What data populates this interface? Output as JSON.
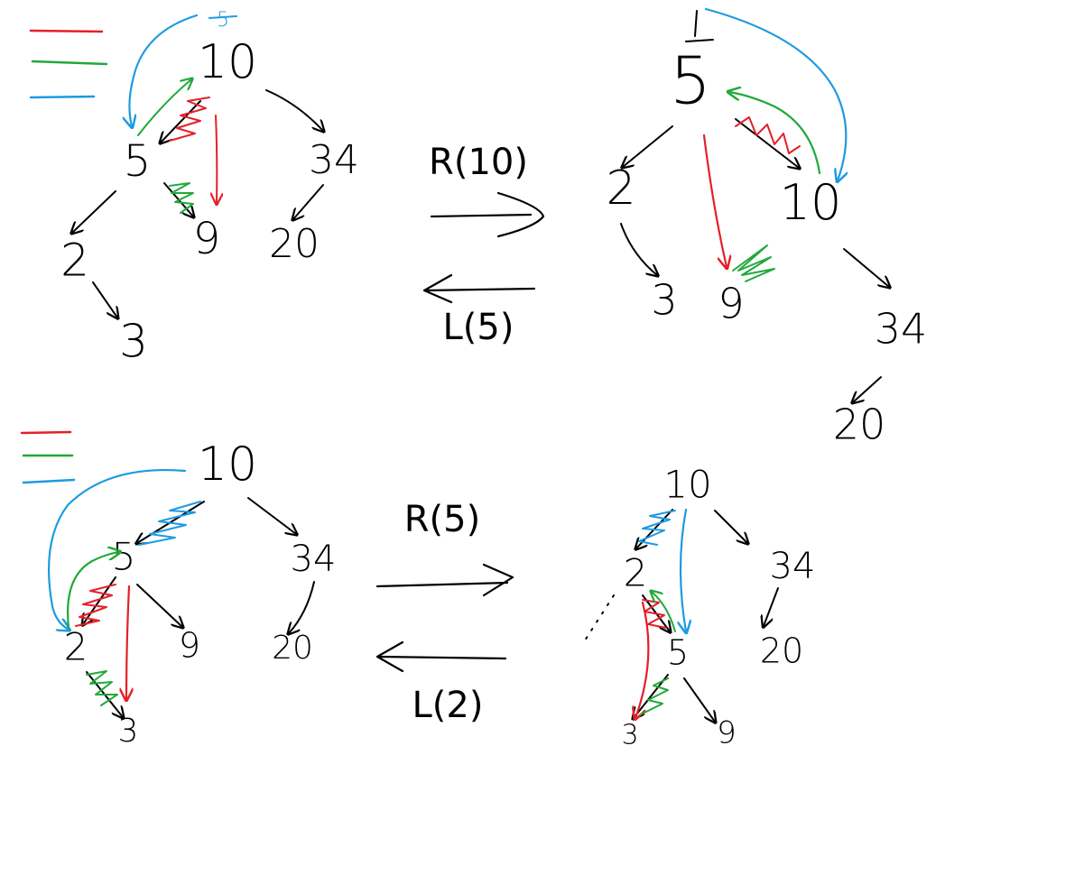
{
  "colors": {
    "ink": "#000000",
    "red": "#e3202a",
    "green": "#22a83a",
    "blue": "#1d9be0"
  },
  "diagrams": {
    "top_left": {
      "nodes": [
        "10",
        "5",
        "34",
        "2",
        "9",
        "20",
        "3"
      ],
      "blue_mark": "5"
    },
    "top_right": {
      "nodes": [
        "5",
        "2",
        "10",
        "3",
        "9",
        "34",
        "20"
      ]
    },
    "bottom_left": {
      "nodes": [
        "10",
        "5",
        "34",
        "2",
        "9",
        "20",
        "3"
      ]
    },
    "bottom_right": {
      "nodes": [
        "10",
        "2",
        "34",
        "5",
        "20",
        "3",
        "9"
      ]
    }
  },
  "operations": {
    "top_forward": "R(10)",
    "top_backward": "L(5)",
    "bottom_forward": "R(5)",
    "bottom_backward": "L(2)"
  }
}
